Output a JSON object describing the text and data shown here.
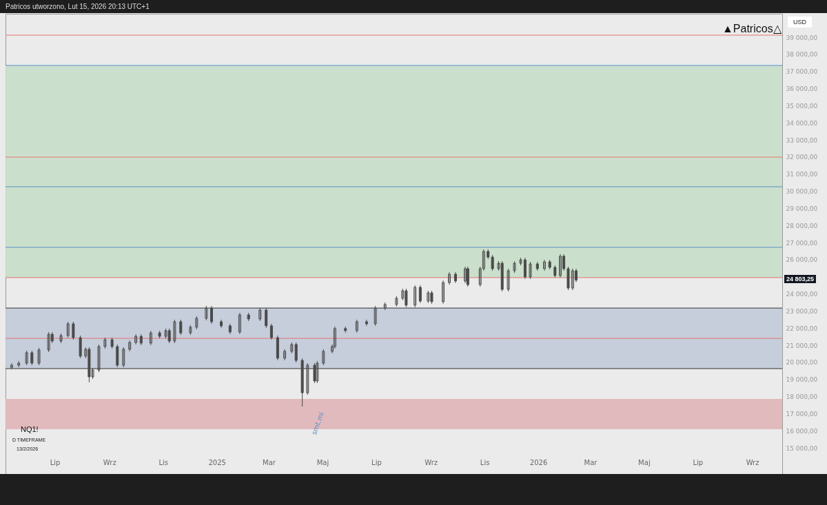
{
  "chart_data": {
    "type": "candlestick",
    "ylabel": "USD",
    "color": "#4a4a4a",
    "annotations": [
      "Patricos utworzono, Lut 15, 2026 20:13 UTC+1",
      "▲Patricos△",
      "NQ1!",
      "D TIMEFRAME",
      "13/2/2026",
      {
        "text": "smt.mi",
        "x": "2025-04-08",
        "y": 17420
      },
      "24 803,25"
    ],
    "x": [
      "2024-05-13",
      "2024-05-21",
      "2024-05-30",
      "2024-06-05",
      "2024-06-13",
      "2024-06-24",
      "2024-06-28",
      "2024-07-08",
      "2024-07-16",
      "2024-07-22",
      "2024-07-30",
      "2024-08-05",
      "2024-08-09",
      "2024-08-13",
      "2024-08-20",
      "2024-08-27",
      "2024-09-04",
      "2024-09-10",
      "2024-09-17",
      "2024-09-24",
      "2024-10-01",
      "2024-10-07",
      "2024-10-18",
      "2024-10-28",
      "2024-11-04",
      "2024-11-08",
      "2024-11-14",
      "2024-11-21",
      "2024-12-02",
      "2024-12-09",
      "2024-12-20",
      "2024-12-26",
      "2025-01-06",
      "2025-01-16",
      "2025-01-27",
      "2025-02-06",
      "2025-02-19",
      "2025-02-26",
      "2025-03-04",
      "2025-03-11",
      "2025-03-19",
      "2025-03-27",
      "2025-04-01",
      "2025-04-08",
      "2025-04-14",
      "2025-04-22",
      "2025-04-25",
      "2025-05-02",
      "2025-05-12",
      "2025-05-15",
      "2025-05-27",
      "2025-06-09",
      "2025-06-20",
      "2025-06-30",
      "2025-07-11",
      "2025-07-24",
      "2025-07-31",
      "2025-08-04",
      "2025-08-14",
      "2025-08-20",
      "2025-08-29",
      "2025-09-02",
      "2025-09-15",
      "2025-09-22",
      "2025-09-29",
      "2025-10-10",
      "2025-10-13",
      "2025-10-27",
      "2025-10-31",
      "2025-11-05",
      "2025-11-10",
      "2025-11-17",
      "2025-11-21",
      "2025-11-28",
      "2025-12-05",
      "2025-12-12",
      "2025-12-17",
      "2025-12-23",
      "2025-12-31",
      "2026-01-08",
      "2026-01-14",
      "2026-01-20",
      "2026-01-26",
      "2026-01-30",
      "2026-02-04",
      "2026-02-09",
      "2026-02-13"
    ],
    "ohlc": [
      [
        19700,
        19950,
        19580,
        19830
      ],
      [
        19830,
        20070,
        19710,
        19950
      ],
      [
        19950,
        20680,
        19830,
        20560
      ],
      [
        20560,
        20680,
        19830,
        19950
      ],
      [
        19950,
        20840,
        19830,
        20720
      ],
      [
        20720,
        21760,
        20600,
        21640
      ],
      [
        21640,
        21760,
        21120,
        21240
      ],
      [
        21240,
        21680,
        21120,
        21560
      ],
      [
        21560,
        22370,
        21440,
        22250
      ],
      [
        22250,
        22370,
        21320,
        21440
      ],
      [
        21440,
        21560,
        20240,
        20360
      ],
      [
        20360,
        20880,
        20240,
        20760
      ],
      [
        20760,
        20880,
        18830,
        19150
      ],
      [
        19150,
        19670,
        19030,
        19550
      ],
      [
        19550,
        21040,
        19430,
        20920
      ],
      [
        20920,
        21440,
        20800,
        21320
      ],
      [
        21320,
        21440,
        20800,
        20920
      ],
      [
        20920,
        21040,
        19710,
        19830
      ],
      [
        19830,
        20880,
        19710,
        20760
      ],
      [
        20760,
        21280,
        20640,
        21160
      ],
      [
        21160,
        21640,
        21040,
        21520
      ],
      [
        21520,
        21640,
        21000,
        21120
      ],
      [
        21120,
        21840,
        21000,
        21720
      ],
      [
        21720,
        21840,
        21400,
        21520
      ],
      [
        21520,
        21970,
        21400,
        21850
      ],
      [
        21850,
        21970,
        21120,
        21240
      ],
      [
        21240,
        22490,
        21120,
        22370
      ],
      [
        22370,
        22490,
        21600,
        21720
      ],
      [
        21720,
        22170,
        21600,
        22050
      ],
      [
        22050,
        22690,
        21930,
        22570
      ],
      [
        22570,
        23300,
        22450,
        23170
      ],
      [
        23170,
        23290,
        22250,
        22370
      ],
      [
        22370,
        22490,
        22010,
        22130
      ],
      [
        22130,
        22250,
        21650,
        21770
      ],
      [
        21770,
        22890,
        21650,
        22770
      ],
      [
        22770,
        22890,
        22410,
        22530
      ],
      [
        22530,
        23170,
        22410,
        23050
      ],
      [
        23050,
        23170,
        22010,
        22130
      ],
      [
        22130,
        22250,
        21320,
        21440
      ],
      [
        21440,
        21560,
        20120,
        20240
      ],
      [
        20240,
        20760,
        20120,
        20640
      ],
      [
        20640,
        21160,
        20520,
        21040
      ],
      [
        21040,
        21160,
        19990,
        20110
      ],
      [
        20110,
        20230,
        17420,
        18220
      ],
      [
        18220,
        19950,
        18100,
        19830
      ],
      [
        19830,
        19950,
        18790,
        18910
      ],
      [
        18910,
        20070,
        18790,
        19950
      ],
      [
        19950,
        20760,
        19830,
        20640
      ],
      [
        20640,
        21040,
        20520,
        20920
      ],
      [
        20920,
        22090,
        20800,
        21970
      ],
      [
        21970,
        22090,
        21730,
        21850
      ],
      [
        21850,
        22490,
        21730,
        22370
      ],
      [
        22370,
        22490,
        22130,
        22250
      ],
      [
        22250,
        23290,
        22130,
        23170
      ],
      [
        23170,
        23500,
        23050,
        23380
      ],
      [
        23380,
        23860,
        23260,
        23740
      ],
      [
        23740,
        24300,
        23620,
        24180
      ],
      [
        24180,
        24300,
        23220,
        23340
      ],
      [
        23340,
        24500,
        23220,
        24380
      ],
      [
        24380,
        24500,
        23460,
        23580
      ],
      [
        23580,
        24180,
        23460,
        24060
      ],
      [
        24060,
        24180,
        23420,
        23540
      ],
      [
        23540,
        24780,
        23420,
        24660
      ],
      [
        24660,
        25270,
        24540,
        25150
      ],
      [
        25150,
        25270,
        24630,
        24750
      ],
      [
        24750,
        25590,
        24630,
        25470
      ],
      [
        25470,
        25590,
        24420,
        24540
      ],
      [
        24540,
        25590,
        24420,
        25470
      ],
      [
        25470,
        26600,
        25350,
        26480
      ],
      [
        26480,
        26600,
        26030,
        26150
      ],
      [
        26150,
        26270,
        25350,
        25470
      ],
      [
        25470,
        25910,
        25350,
        25790
      ],
      [
        25790,
        25910,
        24140,
        24260
      ],
      [
        24260,
        25470,
        24140,
        25350
      ],
      [
        25350,
        25910,
        25230,
        25790
      ],
      [
        25790,
        26110,
        25670,
        25990
      ],
      [
        25990,
        26110,
        24870,
        24990
      ],
      [
        24990,
        25870,
        24870,
        25750
      ],
      [
        25750,
        25870,
        25350,
        25470
      ],
      [
        25470,
        25990,
        25350,
        25870
      ],
      [
        25870,
        25990,
        25430,
        25550
      ],
      [
        25550,
        25670,
        24950,
        25070
      ],
      [
        25070,
        26320,
        24950,
        26200
      ],
      [
        26200,
        26320,
        25350,
        25470
      ],
      [
        25470,
        25590,
        24220,
        24340
      ],
      [
        24340,
        25470,
        24220,
        25350
      ],
      [
        25350,
        25470,
        24680,
        24803.25
      ]
    ],
    "xlim": [
      "2024-05-06",
      "2026-10-05"
    ],
    "xticks": [
      {
        "value": "2024-07-01",
        "label": "Lip"
      },
      {
        "value": "2024-09-01",
        "label": "Wrz"
      },
      {
        "value": "2024-11-01",
        "label": "Lis"
      },
      {
        "value": "2025-01-01",
        "label": "2025"
      },
      {
        "value": "2025-03-01",
        "label": "Mar"
      },
      {
        "value": "2025-05-01",
        "label": "Maj"
      },
      {
        "value": "2025-07-01",
        "label": "Lip"
      },
      {
        "value": "2025-09-01",
        "label": "Wrz"
      },
      {
        "value": "2025-11-01",
        "label": "Lis"
      },
      {
        "value": "2026-01-01",
        "label": "2026"
      },
      {
        "value": "2026-03-01",
        "label": "Mar"
      },
      {
        "value": "2026-05-01",
        "label": "Maj"
      },
      {
        "value": "2026-07-01",
        "label": "Lip"
      },
      {
        "value": "2026-09-01",
        "label": "Wrz"
      }
    ],
    "ylim": [
      13470,
      40370
    ],
    "yticks": [
      {
        "value": 15000,
        "label": "15 000,00"
      },
      {
        "value": 16000,
        "label": "16 000,00"
      },
      {
        "value": 17000,
        "label": "17 000,00"
      },
      {
        "value": 18000,
        "label": "18 000,00"
      },
      {
        "value": 19000,
        "label": "19 000,00"
      },
      {
        "value": 20000,
        "label": "20 000,00"
      },
      {
        "value": 21000,
        "label": "21 000,00"
      },
      {
        "value": 22000,
        "label": "22 000,00"
      },
      {
        "value": 23000,
        "label": "23 000,00"
      },
      {
        "value": 24000,
        "label": "24 000,00"
      },
      {
        "value": 25000,
        "label": null
      },
      {
        "value": 26000,
        "label": "26 000,00"
      },
      {
        "value": 27000,
        "label": "27 000,00"
      },
      {
        "value": 28000,
        "label": "28 000,00"
      },
      {
        "value": 29000,
        "label": "29 000,00"
      },
      {
        "value": 30000,
        "label": "30 000,00"
      },
      {
        "value": 31000,
        "label": "31 000,00"
      },
      {
        "value": 32000,
        "label": "32 000,00"
      },
      {
        "value": 33000,
        "label": "33 000,00"
      },
      {
        "value": 34000,
        "label": "34 000,00"
      },
      {
        "value": 35000,
        "label": "35 000,00"
      },
      {
        "value": 36000,
        "label": "36 000,00"
      },
      {
        "value": 37000,
        "label": "37 000,00"
      },
      {
        "value": 38000,
        "label": "38 000,00"
      },
      {
        "value": 39000,
        "label": "39 000,00"
      }
    ],
    "bands": [
      {
        "axis": "y",
        "from": 24950,
        "to": 37350,
        "color": "#c8dfc9"
      },
      {
        "axis": "y",
        "from": 19630,
        "to": 23170,
        "color": "#c2cad9"
      },
      {
        "axis": "y",
        "from": 16090,
        "to": 17860,
        "color": "#e0b5b8"
      }
    ],
    "ref_lines": [
      {
        "axis": "y",
        "value": 39120,
        "color": "#e57373"
      },
      {
        "axis": "y",
        "value": 37350,
        "color": "#5b8fc7"
      },
      {
        "axis": "y",
        "value": 31990,
        "color": "#e57373"
      },
      {
        "axis": "y",
        "value": 30260,
        "color": "#5b8fc7"
      },
      {
        "axis": "y",
        "value": 26720,
        "color": "#5b8fc7"
      },
      {
        "axis": "y",
        "value": 24950,
        "color": "#e57373"
      },
      {
        "axis": "y",
        "value": 23170,
        "color": "#333333"
      },
      {
        "axis": "y",
        "value": 21400,
        "color": "#e57373"
      },
      {
        "axis": "y",
        "value": 19630,
        "color": "#333333"
      }
    ]
  }
}
